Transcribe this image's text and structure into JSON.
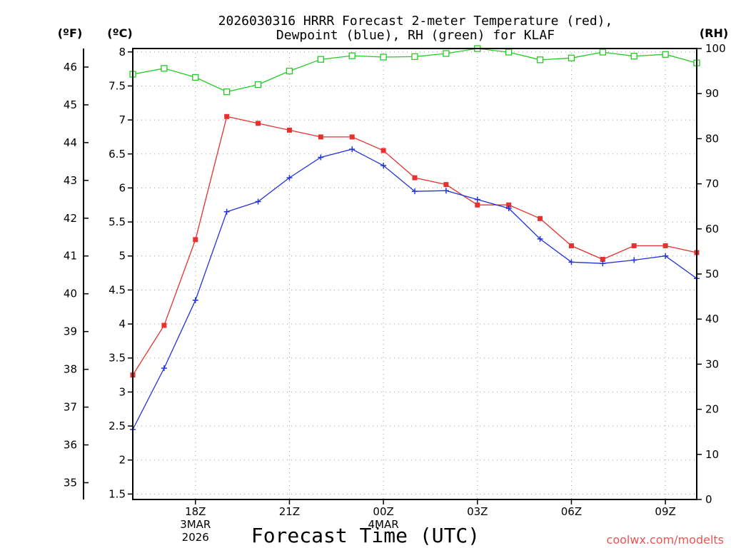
{
  "chart_data": {
    "type": "line",
    "title_line1": "2026030316 HRRR Forecast 2-meter Temperature (red),",
    "title_line2": "Dewpoint (blue), RH (green) for KLAF",
    "xlabel": "Forecast Time (UTC)",
    "unit_labels": {
      "fahrenheit": "(ºF)",
      "celsius": "(ºC)",
      "rh": "(RH)"
    },
    "watermark": "coolwx.com/modelts",
    "x_hours": [
      16,
      17,
      18,
      19,
      20,
      21,
      22,
      23,
      24,
      25,
      26,
      27,
      28,
      29,
      30,
      31,
      32,
      33,
      34
    ],
    "xlim": [
      16,
      34
    ],
    "x_ticks": [
      {
        "hour": 18,
        "lines": [
          "18Z",
          "3MAR",
          "2026"
        ]
      },
      {
        "hour": 21,
        "lines": [
          "21Z"
        ]
      },
      {
        "hour": 24,
        "lines": [
          "00Z",
          "4MAR"
        ]
      },
      {
        "hour": 27,
        "lines": [
          "03Z"
        ]
      },
      {
        "hour": 30,
        "lines": [
          "06Z"
        ]
      },
      {
        "hour": 33,
        "lines": [
          "09Z"
        ]
      }
    ],
    "celsius_axis": {
      "ylim": [
        1.42,
        8.05
      ],
      "ticks": [
        "1.5",
        "2",
        "2.5",
        "3",
        "3.5",
        "4",
        "4.5",
        "5",
        "5.5",
        "6",
        "6.5",
        "7",
        "7.5",
        "8"
      ]
    },
    "fahrenheit_axis": {
      "ticks": [
        "35",
        "36",
        "37",
        "38",
        "39",
        "40",
        "41",
        "42",
        "43",
        "44",
        "45",
        "46"
      ]
    },
    "rh_axis": {
      "ylim": [
        0,
        100
      ],
      "ticks": [
        "0",
        "10",
        "20",
        "30",
        "40",
        "50",
        "60",
        "70",
        "80",
        "90",
        "100"
      ]
    },
    "series": [
      {
        "name": "Temperature",
        "axis": "celsius",
        "color": "#e8312f",
        "marker": "filled-square",
        "values": [
          3.25,
          3.98,
          5.24,
          7.05,
          6.95,
          6.85,
          6.75,
          6.75,
          6.55,
          6.15,
          6.05,
          5.75,
          5.75,
          5.55,
          5.15,
          4.95,
          5.15,
          5.15,
          5.05
        ]
      },
      {
        "name": "Dewpoint",
        "axis": "celsius",
        "color": "#2233dd",
        "marker": "plus",
        "values": [
          2.45,
          3.35,
          4.35,
          5.65,
          5.8,
          6.15,
          6.45,
          6.57,
          6.33,
          5.95,
          5.96,
          5.83,
          5.7,
          5.25,
          4.91,
          4.89,
          4.94,
          5.0,
          4.67
        ]
      },
      {
        "name": "RH",
        "axis": "rh",
        "color": "#22cc22",
        "marker": "open-square",
        "values": [
          94.3,
          95.6,
          93.6,
          90.4,
          92.0,
          95.0,
          97.6,
          98.4,
          98.1,
          98.2,
          98.9,
          100.0,
          99.2,
          97.5,
          97.9,
          99.2,
          98.3,
          98.7,
          96.8
        ]
      }
    ]
  }
}
